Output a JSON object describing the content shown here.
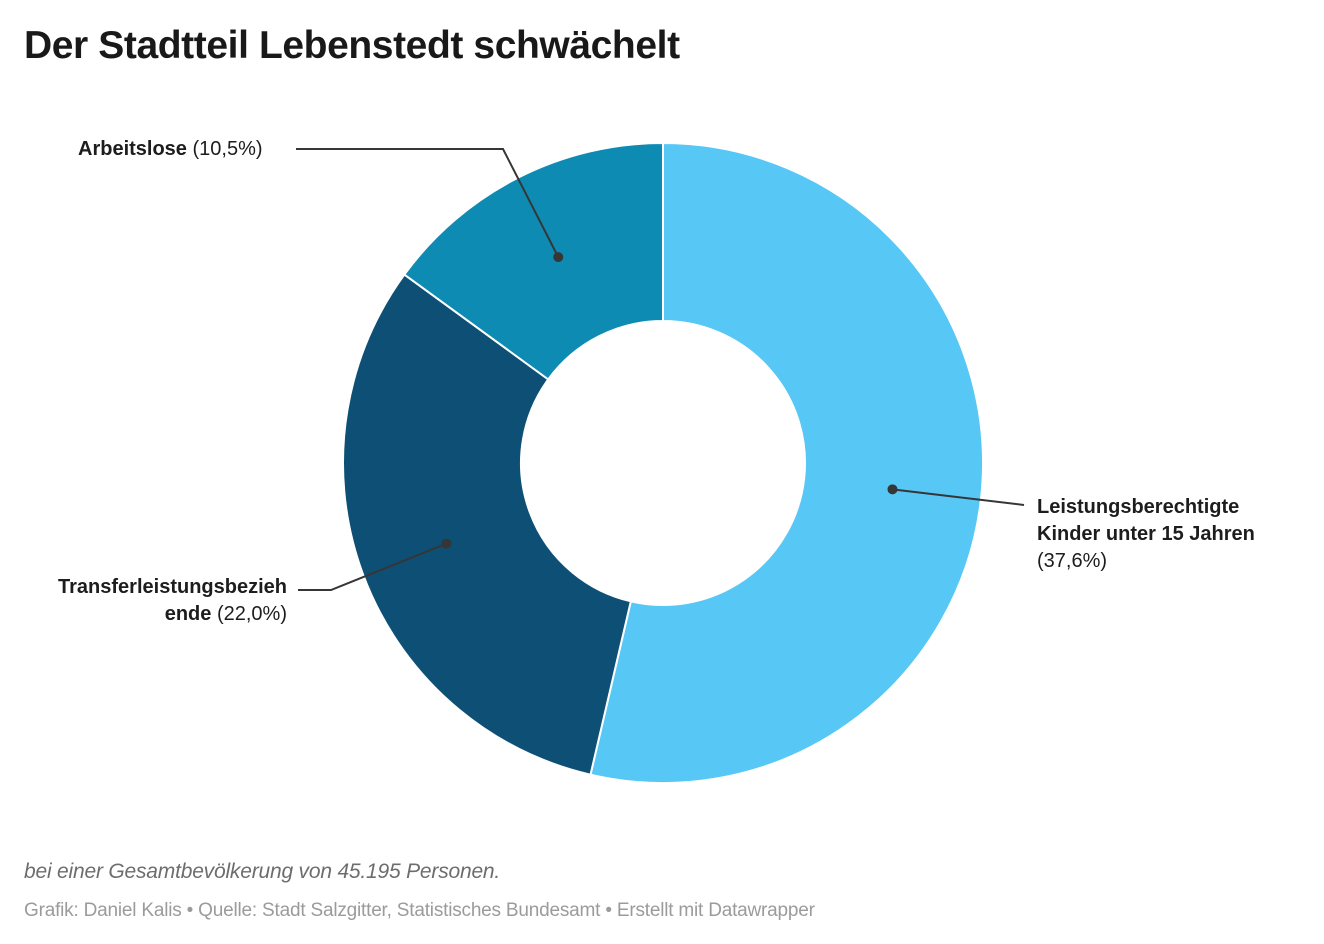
{
  "page": {
    "title": "Der Stadtteil Lebenstedt schwächelt",
    "footnote": "bei einer Gesamtbevölkerung von 45.195 Personen.",
    "attribution": "Grafik: Daniel Kalis • Quelle: Stadt Salzgitter, Statistisches Bundesamt • Erstellt mit Datawrapper"
  },
  "chart_data": {
    "type": "pie",
    "subtype": "donut",
    "title": "Der Stadtteil Lebenstedt schwächelt",
    "note": "bei einer Gesamtbevölkerung von 45.195 Personen.",
    "unit": "%",
    "order": "clockwise-from-top",
    "leader_line_color": "#363636",
    "slices": [
      {
        "name": "Leistungsberechtigte Kinder unter 15 Jahren",
        "value": 37.6,
        "value_text": "(37,6%)",
        "color": "#57c7f5"
      },
      {
        "name": "Transferleistungsbeziehende",
        "name_lines": [
          "Transferleistungsbezieh",
          "ende"
        ],
        "value": 22.0,
        "value_text": "(22,0%)",
        "color": "#0e4f75"
      },
      {
        "name": "Arbeitslose",
        "value": 10.5,
        "value_text": "(10,5%)",
        "color": "#0e8bb3"
      }
    ]
  }
}
